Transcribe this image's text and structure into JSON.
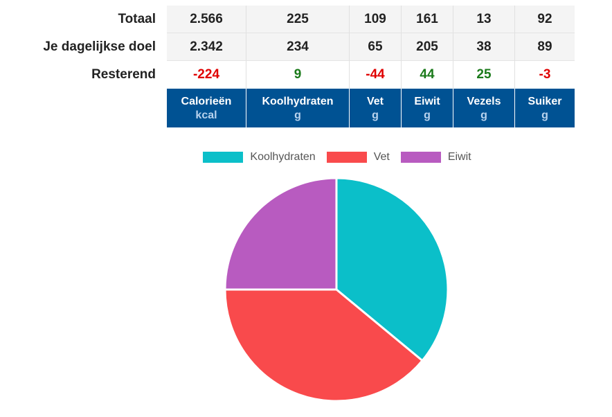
{
  "table": {
    "rows": [
      {
        "label": "Totaal",
        "values": [
          "2.566",
          "225",
          "109",
          "161",
          "13",
          "92"
        ],
        "status": [
          "",
          "",
          "",
          "",
          "",
          ""
        ]
      },
      {
        "label": "Je dagelijkse doel",
        "values": [
          "2.342",
          "234",
          "65",
          "205",
          "38",
          "89"
        ],
        "status": [
          "",
          "",
          "",
          "",
          "",
          ""
        ]
      },
      {
        "label": "Resterend",
        "values": [
          "-224",
          "9",
          "-44",
          "44",
          "25",
          "-3"
        ],
        "status": [
          "neg",
          "pos",
          "neg",
          "pos",
          "pos",
          "neg"
        ]
      }
    ],
    "columns": [
      {
        "name": "Calorieën",
        "unit": "kcal"
      },
      {
        "name": "Koolhydraten",
        "unit": "g"
      },
      {
        "name": "Vet",
        "unit": "g"
      },
      {
        "name": "Eiwit",
        "unit": "g"
      },
      {
        "name": "Vezels",
        "unit": "g"
      },
      {
        "name": "Suiker",
        "unit": "g"
      }
    ],
    "header_color": "#005293",
    "negative_color": "#e00000",
    "positive_color": "#1a7a1a"
  },
  "chart_data": {
    "type": "pie",
    "categories": [
      "Koolhydraten",
      "Vet",
      "Eiwit"
    ],
    "values": [
      36,
      39,
      25
    ],
    "colors": [
      "#0bbfc9",
      "#f94a4c",
      "#b85bc0"
    ],
    "legend_position": "top-center",
    "start_angle_deg": 0
  }
}
